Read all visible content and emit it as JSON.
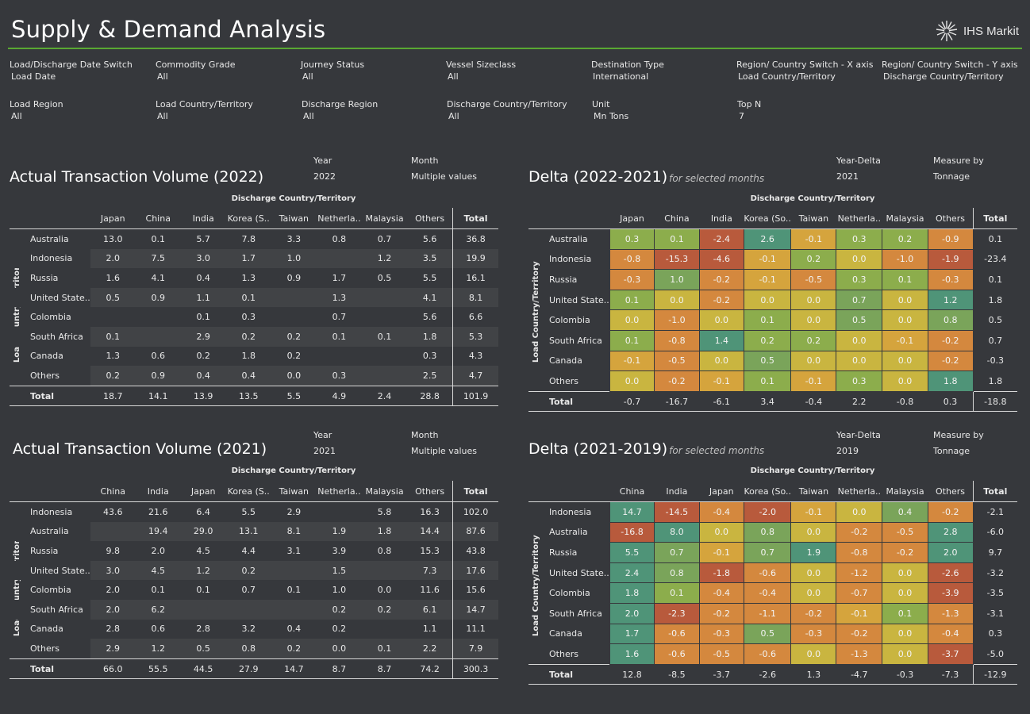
{
  "app": {
    "title": "Supply & Demand Analysis",
    "logo_text": "IHS Markit"
  },
  "filters": [
    {
      "label": "Load/Discharge Date Switch",
      "value": "Load Date"
    },
    {
      "label": "Commodity Grade",
      "value": "All"
    },
    {
      "label": "Journey Status",
      "value": "All"
    },
    {
      "label": "Vessel Sizeclass",
      "value": "All"
    },
    {
      "label": "Destination Type",
      "value": "International"
    },
    {
      "label": "Region/ Country Switch - X axis",
      "value": "Load Country/Territory"
    },
    {
      "label": "Region/ Country Switch - Y axis",
      "value": "Discharge Country/Territory"
    },
    {
      "label": "Load Region",
      "value": "All"
    },
    {
      "label": "Load Country/Territory",
      "value": "All"
    },
    {
      "label": "Discharge Region",
      "value": "All"
    },
    {
      "label": "Discharge Country/Territory",
      "value": "All"
    },
    {
      "label": "Unit",
      "value": "Mn Tons"
    },
    {
      "label": "Top N",
      "value": "7"
    }
  ],
  "axis": {
    "x_title": "Discharge Country/Territory",
    "y_title": "Load Country/Territory"
  },
  "colors": {
    "neg_strong": "#b85a3c",
    "neg": "#d4883e",
    "neg_light": "#d5a43d",
    "neutral": "#c9b540",
    "pos_light": "#8cad4c",
    "pos": "#7aa45a",
    "pos_strong": "#4f9478",
    "accent_rule": "#5aa832"
  },
  "tables": [
    {
      "title": "Actual Transaction Volume (2022)",
      "subtitle": "",
      "params": [
        {
          "label": "Year",
          "value": "2022"
        },
        {
          "label": "Month",
          "value": "Multiple values"
        }
      ],
      "columns": [
        "Japan",
        "China",
        "India",
        "Korea (S..",
        "Taiwan",
        "Netherla..",
        "Malaysia",
        "Others"
      ],
      "total_label": "Total",
      "rows": [
        {
          "name": "Australia",
          "cells": [
            "13.0",
            "0.1",
            "5.7",
            "7.8",
            "3.3",
            "0.8",
            "0.7",
            "5.6"
          ],
          "total": "36.8"
        },
        {
          "name": "Indonesia",
          "cells": [
            "2.0",
            "7.5",
            "3.0",
            "1.7",
            "1.0",
            "",
            "1.2",
            "3.5"
          ],
          "total": "19.9"
        },
        {
          "name": "Russia",
          "cells": [
            "1.6",
            "4.1",
            "0.4",
            "1.3",
            "0.9",
            "1.7",
            "0.5",
            "5.5"
          ],
          "total": "16.1"
        },
        {
          "name": "United State..",
          "cells": [
            "0.5",
            "0.9",
            "1.1",
            "0.1",
            "",
            "1.3",
            "",
            "4.1"
          ],
          "total": "8.1"
        },
        {
          "name": "Colombia",
          "cells": [
            "",
            "",
            "0.1",
            "0.3",
            "",
            "0.7",
            "",
            "5.6"
          ],
          "total": "6.6"
        },
        {
          "name": "South Africa",
          "cells": [
            "0.1",
            "",
            "2.9",
            "0.2",
            "0.2",
            "0.1",
            "0.1",
            "1.8"
          ],
          "total": "5.3"
        },
        {
          "name": "Canada",
          "cells": [
            "1.3",
            "0.6",
            "0.2",
            "1.8",
            "0.2",
            "",
            "",
            "0.3"
          ],
          "total": "4.3"
        },
        {
          "name": "Others",
          "cells": [
            "0.2",
            "0.9",
            "0.4",
            "0.4",
            "0.0",
            "0.3",
            "",
            "2.5"
          ],
          "total": "4.7"
        }
      ],
      "totals": {
        "name": "Total",
        "cells": [
          "18.7",
          "14.1",
          "13.9",
          "13.5",
          "5.5",
          "4.9",
          "2.4",
          "28.8"
        ],
        "total": "101.9"
      }
    },
    {
      "title": "Delta (2022-2021)",
      "subtitle": "for selected months",
      "params": [
        {
          "label": "Year-Delta",
          "value": "2021"
        },
        {
          "label": "Measure by",
          "value": "Tonnage"
        }
      ],
      "columns": [
        "Japan",
        "China",
        "India",
        "Korea (So..",
        "Taiwan",
        "Netherla..",
        "Malaysia",
        "Others"
      ],
      "total_label": "Total",
      "rows": [
        {
          "name": "Australia",
          "cells": [
            "0.3",
            "0.1",
            "-2.4",
            "2.6",
            "-0.1",
            "0.3",
            "0.2",
            "-0.9"
          ],
          "total": "0.1"
        },
        {
          "name": "Indonesia",
          "cells": [
            "-0.8",
            "-15.3",
            "-4.6",
            "-0.1",
            "0.2",
            "0.0",
            "-1.0",
            "-1.9"
          ],
          "total": "-23.4"
        },
        {
          "name": "Russia",
          "cells": [
            "-0.3",
            "1.0",
            "-0.2",
            "-0.1",
            "-0.5",
            "0.3",
            "0.1",
            "-0.3"
          ],
          "total": "0.1"
        },
        {
          "name": "United State..",
          "cells": [
            "0.1",
            "0.0",
            "-0.2",
            "0.0",
            "0.0",
            "0.7",
            "0.0",
            "1.2"
          ],
          "total": "1.8"
        },
        {
          "name": "Colombia",
          "cells": [
            "0.0",
            "-1.0",
            "0.0",
            "0.1",
            "0.0",
            "0.5",
            "0.0",
            "0.8"
          ],
          "total": "0.5"
        },
        {
          "name": "South Africa",
          "cells": [
            "0.1",
            "-0.8",
            "1.4",
            "0.2",
            "0.2",
            "0.0",
            "-0.1",
            "-0.2"
          ],
          "total": "0.7"
        },
        {
          "name": "Canada",
          "cells": [
            "-0.1",
            "-0.5",
            "0.0",
            "0.5",
            "0.0",
            "0.0",
            "0.0",
            "-0.2"
          ],
          "total": "-0.3"
        },
        {
          "name": "Others",
          "cells": [
            "0.0",
            "-0.2",
            "-0.1",
            "0.1",
            "-0.1",
            "0.3",
            "0.0",
            "1.8"
          ],
          "total": "1.8"
        }
      ],
      "totals": {
        "name": "Total",
        "cells": [
          "-0.7",
          "-16.7",
          "-6.1",
          "3.4",
          "-0.4",
          "2.2",
          "-0.8",
          "0.3"
        ],
        "total": "-18.8"
      }
    },
    {
      "title": "Actual Transaction Volume (2021)",
      "subtitle": "",
      "params": [
        {
          "label": "Year",
          "value": "2021"
        },
        {
          "label": "Month",
          "value": "Multiple values"
        }
      ],
      "columns": [
        "China",
        "India",
        "Japan",
        "Korea (S..",
        "Taiwan",
        "Netherla..",
        "Malaysia",
        "Others"
      ],
      "total_label": "Total",
      "rows": [
        {
          "name": "Indonesia",
          "cells": [
            "43.6",
            "21.6",
            "6.4",
            "5.5",
            "2.9",
            "",
            "5.8",
            "16.3"
          ],
          "total": "102.0"
        },
        {
          "name": "Australia",
          "cells": [
            "",
            "19.4",
            "29.0",
            "13.1",
            "8.1",
            "1.9",
            "1.8",
            "14.4"
          ],
          "total": "87.6"
        },
        {
          "name": "Russia",
          "cells": [
            "9.8",
            "2.0",
            "4.5",
            "4.4",
            "3.1",
            "3.9",
            "0.8",
            "15.3"
          ],
          "total": "43.8"
        },
        {
          "name": "United State..",
          "cells": [
            "3.0",
            "4.5",
            "1.2",
            "0.2",
            "",
            "1.5",
            "",
            "7.3"
          ],
          "total": "17.6"
        },
        {
          "name": "Colombia",
          "cells": [
            "2.0",
            "0.1",
            "0.1",
            "0.7",
            "0.1",
            "1.0",
            "0.0",
            "11.6"
          ],
          "total": "15.6"
        },
        {
          "name": "South Africa",
          "cells": [
            "2.0",
            "6.2",
            "",
            "",
            "",
            "0.2",
            "0.2",
            "6.1"
          ],
          "total": "14.7"
        },
        {
          "name": "Canada",
          "cells": [
            "2.8",
            "0.6",
            "2.8",
            "3.2",
            "0.4",
            "0.2",
            "",
            "1.1"
          ],
          "total": "11.1"
        },
        {
          "name": "Others",
          "cells": [
            "2.9",
            "1.2",
            "0.5",
            "0.8",
            "0.2",
            "0.0",
            "0.1",
            "2.2"
          ],
          "total": "7.9"
        }
      ],
      "totals": {
        "name": "Total",
        "cells": [
          "66.0",
          "55.5",
          "44.5",
          "27.9",
          "14.7",
          "8.7",
          "8.7",
          "74.2"
        ],
        "total": "300.3"
      }
    },
    {
      "title": "Delta (2021-2019)",
      "subtitle": "for selected months",
      "params": [
        {
          "label": "Year-Delta",
          "value": "2019"
        },
        {
          "label": "Measure by",
          "value": "Tonnage"
        }
      ],
      "columns": [
        "China",
        "India",
        "Japan",
        "Korea (So..",
        "Taiwan",
        "Netherla..",
        "Malaysia",
        "Others"
      ],
      "total_label": "Total",
      "rows": [
        {
          "name": "Indonesia",
          "cells": [
            "14.7",
            "-14.5",
            "-0.4",
            "-2.0",
            "-0.1",
            "0.0",
            "0.4",
            "-0.2"
          ],
          "total": "-2.1"
        },
        {
          "name": "Australia",
          "cells": [
            "-16.8",
            "8.0",
            "0.0",
            "0.8",
            "0.0",
            "-0.2",
            "-0.5",
            "2.8"
          ],
          "total": "-6.0"
        },
        {
          "name": "Russia",
          "cells": [
            "5.5",
            "0.7",
            "-0.1",
            "0.7",
            "1.9",
            "-0.8",
            "-0.2",
            "2.0"
          ],
          "total": "9.7"
        },
        {
          "name": "United State..",
          "cells": [
            "2.4",
            "0.8",
            "-1.8",
            "-0.6",
            "0.0",
            "-1.2",
            "0.0",
            "-2.6"
          ],
          "total": "-3.2"
        },
        {
          "name": "Colombia",
          "cells": [
            "1.8",
            "0.1",
            "-0.4",
            "-0.4",
            "0.0",
            "-0.7",
            "0.0",
            "-3.9"
          ],
          "total": "-3.5"
        },
        {
          "name": "South Africa",
          "cells": [
            "2.0",
            "-2.3",
            "-0.2",
            "-1.1",
            "-0.2",
            "-0.1",
            "0.1",
            "-1.3"
          ],
          "total": "-3.1"
        },
        {
          "name": "Canada",
          "cells": [
            "1.7",
            "-0.6",
            "-0.3",
            "0.5",
            "-0.3",
            "-0.2",
            "0.0",
            "-0.4"
          ],
          "total": "0.3"
        },
        {
          "name": "Others",
          "cells": [
            "1.6",
            "-0.6",
            "-0.5",
            "-0.6",
            "0.0",
            "-1.3",
            "0.0",
            "-3.7"
          ],
          "total": "-5.0"
        }
      ],
      "totals": {
        "name": "Total",
        "cells": [
          "12.8",
          "-8.5",
          "-3.7",
          "-2.6",
          "1.3",
          "-4.7",
          "-0.3",
          "-7.3"
        ],
        "total": "-12.9"
      }
    }
  ]
}
